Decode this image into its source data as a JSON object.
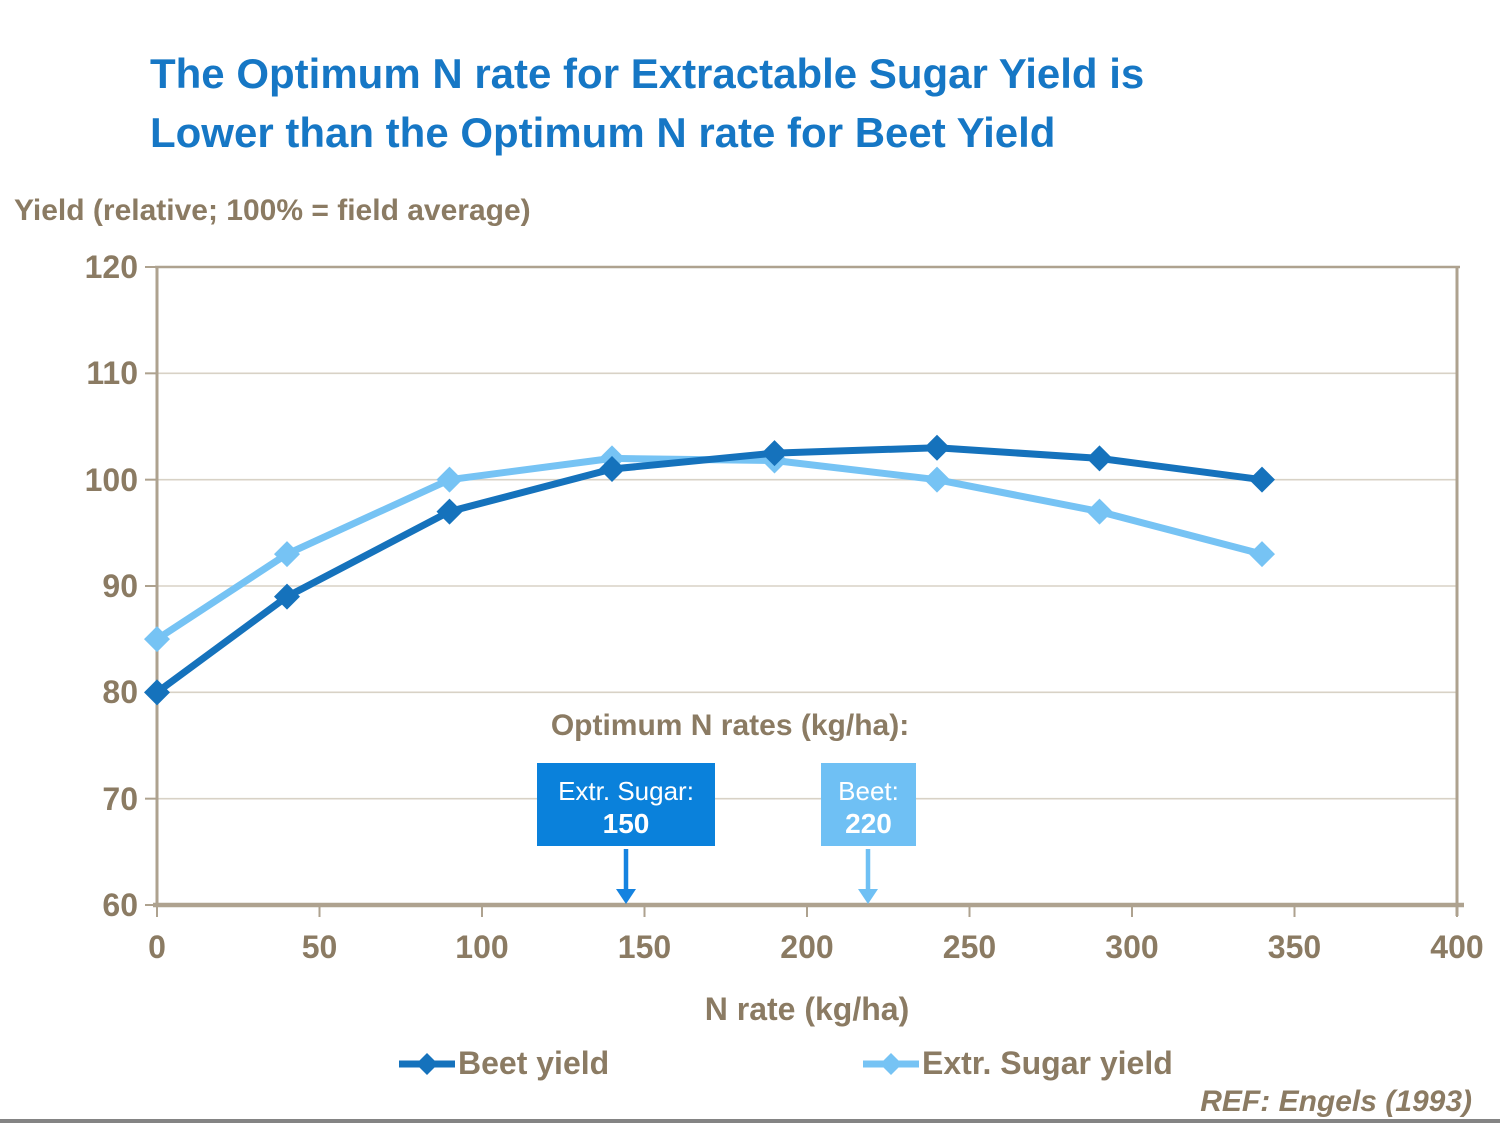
{
  "slide": {
    "title_line1": "The Optimum N rate for Extractable Sugar Yield is",
    "title_line2": "Lower than the Optimum N rate for Beet Yield",
    "reference": "REF: Engels (1993)"
  },
  "axes": {
    "y_title": "Yield (relative; 100% = field average)",
    "x_title": "N rate (kg/ha)"
  },
  "annotation": {
    "heading": "Optimum N rates (kg/ha):",
    "sugar_box": {
      "label": "Extr. Sugar:",
      "value": "150"
    },
    "beet_box": {
      "label": "Beet:",
      "value": "220"
    }
  },
  "legend": {
    "items": [
      {
        "label": "Beet yield"
      },
      {
        "label": "Extr. Sugar yield"
      }
    ]
  },
  "chart_data": {
    "type": "line",
    "x": [
      0,
      40,
      90,
      140,
      190,
      240,
      290,
      340
    ],
    "series": [
      {
        "name": "Beet yield",
        "color": "#1572BC",
        "values": [
          80,
          89,
          97,
          101,
          102.5,
          103,
          102,
          100
        ]
      },
      {
        "name": "Extr. Sugar yield",
        "color": "#76C3F4",
        "values": [
          85,
          93,
          100,
          102,
          101.8,
          100,
          97,
          93
        ]
      }
    ],
    "xlim": [
      0,
      400
    ],
    "ylim": [
      60,
      120
    ],
    "xticks": [
      0,
      50,
      100,
      150,
      200,
      250,
      300,
      350,
      400
    ],
    "yticks": [
      60,
      70,
      80,
      90,
      100,
      110,
      120
    ],
    "xlabel": "N rate (kg/ha)",
    "ylabel": "Yield (relative; 100% = field average)",
    "title": "The Optimum N rate for Extractable Sugar Yield is Lower than the Optimum N rate for Beet Yield",
    "grid": "horizontal",
    "marker": "diamond",
    "legend_position": "bottom"
  },
  "colors": {
    "title_blue": "#1677C5",
    "brown_text": "#8B7B63",
    "beet_line": "#1572BC",
    "sugar_line": "#76C3F4",
    "sugar_box_bg": "#0A81DB",
    "beet_box_bg": "#6FC0F4",
    "sugar_arrow": "#1583E0",
    "beet_arrow": "#6FC0F4",
    "gridline": "#D8D2C6",
    "axis_border": "#AEA28F",
    "bottom_bar": "#848484"
  }
}
